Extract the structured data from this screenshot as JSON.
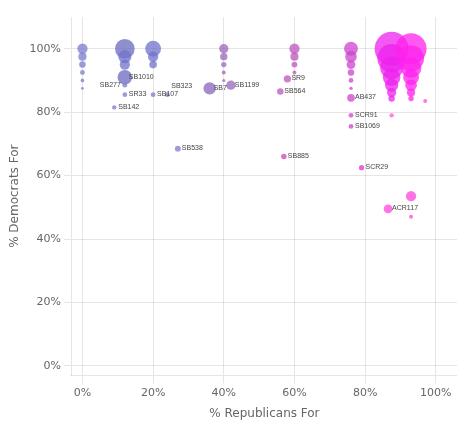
{
  "chart_data": {
    "type": "scatter",
    "xlabel": "% Republicans For",
    "ylabel": "% Democrats For",
    "grid": true,
    "xlim": [
      -0.03,
      1.06
    ],
    "ylim": [
      -0.03,
      1.1
    ],
    "xticks": [
      {
        "value": 0,
        "label": "0%"
      },
      {
        "value": 0.2,
        "label": "20%"
      },
      {
        "value": 0.4,
        "label": "40%"
      },
      {
        "value": 0.6,
        "label": "60%"
      },
      {
        "value": 0.8,
        "label": "80%"
      },
      {
        "value": 1.0,
        "label": "100%"
      }
    ],
    "yticks": [
      {
        "value": 0,
        "label": "0%"
      },
      {
        "value": 0.2,
        "label": "20%"
      },
      {
        "value": 0.4,
        "label": "40%"
      },
      {
        "value": 0.6,
        "label": "60%"
      },
      {
        "value": 0.8,
        "label": "80%"
      },
      {
        "value": 1.0,
        "label": "100%"
      }
    ],
    "x": [
      0.0,
      0.0,
      0.0,
      0.0,
      0.0,
      0.0,
      0.12,
      0.12,
      0.12,
      0.12,
      0.12,
      0.12,
      0.09,
      0.2,
      0.2,
      0.2,
      0.2,
      0.24,
      0.27,
      0.4,
      0.4,
      0.4,
      0.4,
      0.4,
      0.42,
      0.36,
      0.6,
      0.6,
      0.6,
      0.6,
      0.58,
      0.56,
      0.57,
      0.76,
      0.76,
      0.76,
      0.76,
      0.76,
      0.76,
      0.76,
      0.76,
      0.76,
      0.79,
      0.875,
      0.875,
      0.875,
      0.875,
      0.875,
      0.875,
      0.875,
      0.93,
      0.93,
      0.93,
      0.93,
      0.93,
      0.93,
      0.93,
      0.97,
      0.875,
      0.93,
      0.865,
      0.93
    ],
    "values": [
      1.0,
      0.975,
      0.95,
      0.925,
      0.9,
      0.875,
      1.0,
      0.975,
      0.95,
      0.91,
      0.885,
      0.855,
      0.815,
      1.0,
      0.975,
      0.95,
      0.855,
      0.855,
      0.685,
      1.0,
      0.975,
      0.95,
      0.925,
      0.9,
      0.885,
      0.875,
      1.0,
      0.975,
      0.95,
      0.925,
      0.905,
      0.865,
      0.66,
      1.0,
      0.975,
      0.95,
      0.925,
      0.9,
      0.875,
      0.845,
      0.79,
      0.755,
      0.625,
      1.0,
      0.97,
      0.94,
      0.91,
      0.885,
      0.862,
      0.843,
      1.0,
      0.97,
      0.94,
      0.91,
      0.885,
      0.862,
      0.843,
      0.835,
      0.79,
      0.535,
      0.495,
      0.47
    ],
    "sizes": [
      55,
      35,
      22,
      12,
      7,
      4,
      200,
      90,
      55,
      110,
      12,
      12,
      10,
      130,
      55,
      30,
      12,
      12,
      18,
      45,
      28,
      15,
      8,
      5,
      45,
      80,
      55,
      35,
      18,
      8,
      28,
      22,
      16,
      100,
      70,
      40,
      22,
      12,
      6,
      30,
      12,
      12,
      14,
      600,
      420,
      270,
      160,
      90,
      45,
      22,
      500,
      350,
      220,
      130,
      70,
      35,
      15,
      8,
      10,
      55,
      40,
      8
    ],
    "colors": [
      "#7b7bcc",
      "#7b7bcc",
      "#7b7bcc",
      "#7b7bcc",
      "#7b7bcc",
      "#7b7bcc",
      "#6a6ac0",
      "#7070cc",
      "#7070cc",
      "#6a6ac0",
      "#7b7bcc",
      "#7b7bcc",
      "#7b7bcc",
      "#7070cc",
      "#7070cc",
      "#7070cc",
      "#7b7bcc",
      "#7b7bcc",
      "#8877cc",
      "#9966bb",
      "#9966bb",
      "#9966bb",
      "#9966bb",
      "#9966bb",
      "#9966bb",
      "#8866bb",
      "#bb55bb",
      "#bb55bb",
      "#bb55bb",
      "#bb55bb",
      "#bb55bb",
      "#bb55bb",
      "#cc44bb",
      "#cc44cc",
      "#cc44cc",
      "#cc44cc",
      "#cc44cc",
      "#cc44cc",
      "#cc44cc",
      "#cc44cc",
      "#cc44cc",
      "#cc44cc",
      "#dd33cc",
      "#ee22ee",
      "#ee22ee",
      "#ee22ee",
      "#ee22ee",
      "#ee22ee",
      "#ee22ee",
      "#ee22ee",
      "#ff22ee",
      "#ff22ee",
      "#ff22ee",
      "#ff22ee",
      "#ff22ee",
      "#ff22ee",
      "#ff22ee",
      "#ff44dd",
      "#ff55dd",
      "#ff44dd",
      "#ff44dd",
      "#ff44dd"
    ],
    "point_labels": [
      null,
      null,
      null,
      null,
      null,
      null,
      null,
      null,
      null,
      "SB1010",
      "SB277",
      "SR33",
      "SB142",
      null,
      null,
      null,
      "SB107",
      "SB323",
      "SB538",
      null,
      null,
      null,
      null,
      null,
      "SB1199",
      "SB7",
      null,
      null,
      null,
      null,
      "SR9",
      "SB564",
      "SB885",
      null,
      null,
      null,
      null,
      null,
      null,
      "AB437",
      "SCR91",
      "SB1069",
      "SCR29",
      null,
      null,
      null,
      null,
      null,
      null,
      null,
      null,
      null,
      null,
      null,
      null,
      null,
      null,
      null,
      null,
      null,
      "ACR117",
      null
    ]
  }
}
